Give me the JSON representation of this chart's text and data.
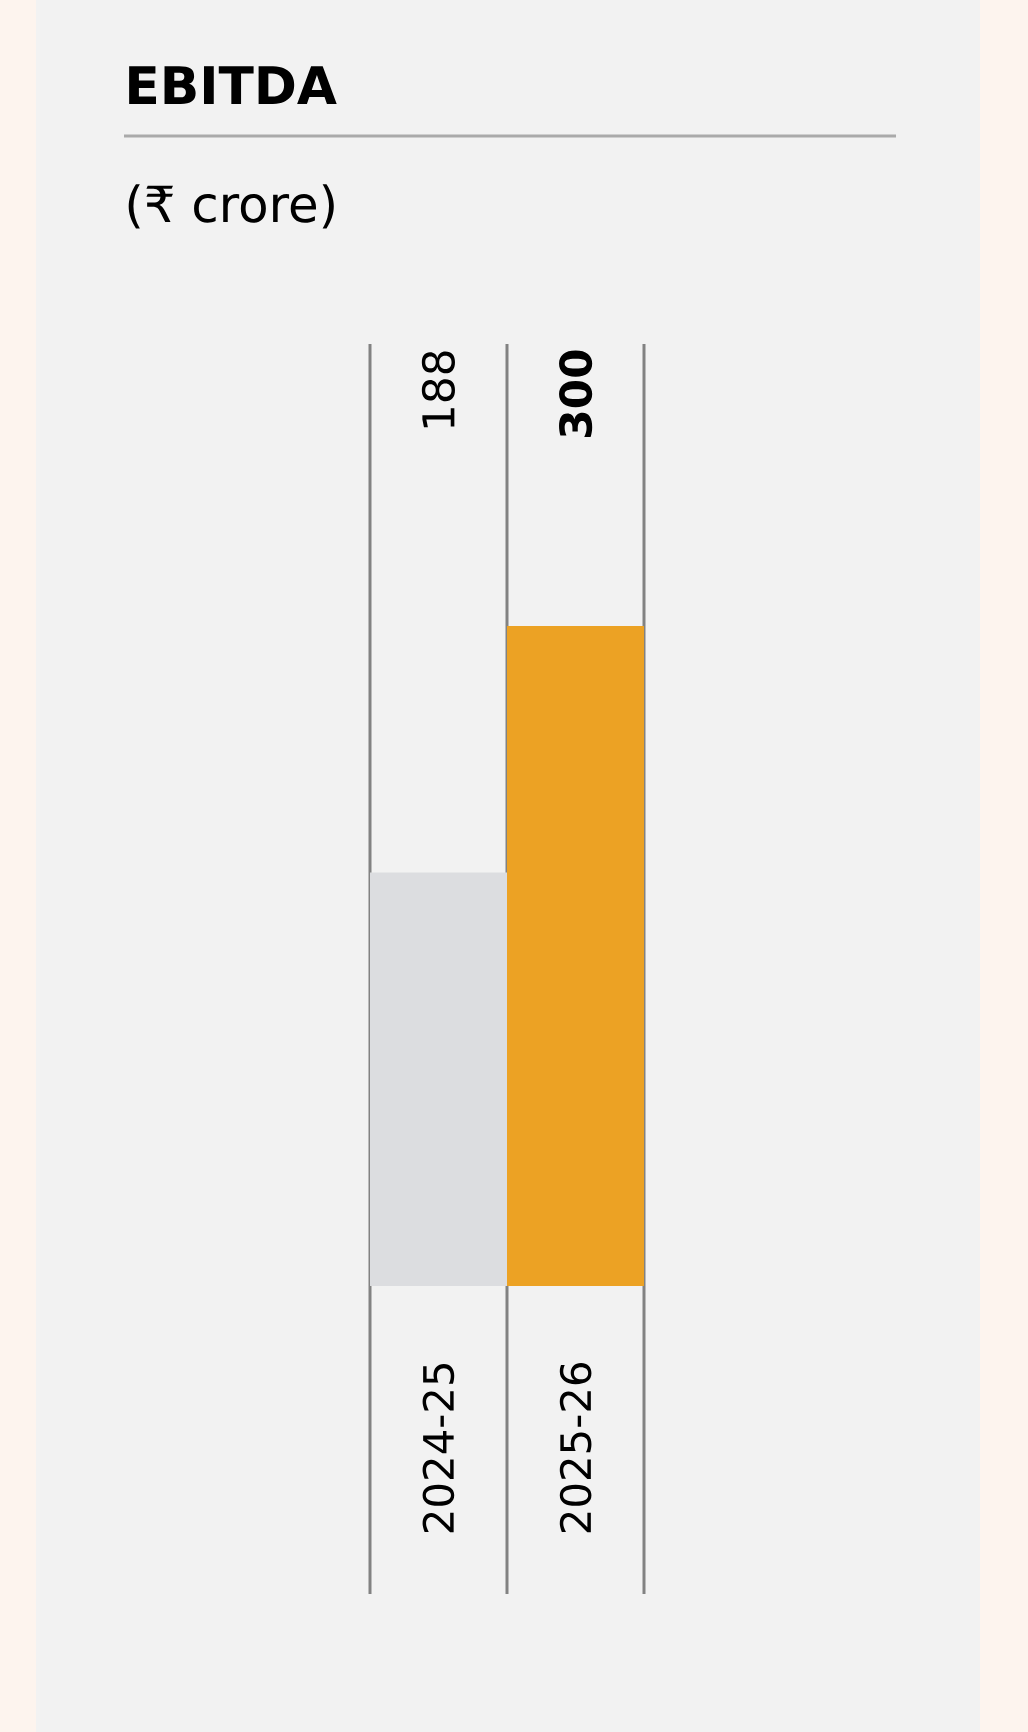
{
  "chart_data": {
    "type": "bar",
    "title": "EBITDA",
    "subtitle": "(₹ crore)",
    "categories": [
      "2024-25",
      "2025-26"
    ],
    "values": [
      188,
      300
    ],
    "colors": [
      "#dcdde0",
      "#eca224"
    ],
    "data_labels": true
  }
}
